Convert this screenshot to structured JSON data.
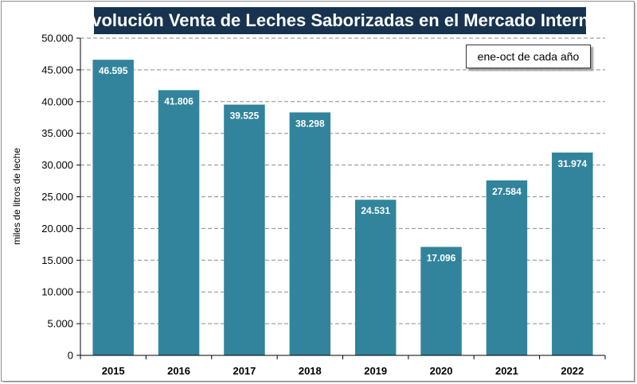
{
  "chart_data": {
    "type": "bar",
    "title": "Evolución Venta de Leches Saborizadas en el Mercado Interno",
    "annotation": "ene-oct de cada año",
    "xlabel": "",
    "ylabel": "miles de litros de leche",
    "categories": [
      "2015",
      "2016",
      "2017",
      "2018",
      "2019",
      "2020",
      "2021",
      "2022"
    ],
    "values": [
      46595,
      41806,
      39525,
      38298,
      24531,
      17096,
      27584,
      31974
    ],
    "value_labels": [
      "46.595",
      "41.806",
      "39.525",
      "38.298",
      "24.531",
      "17.096",
      "27.584",
      "31.974"
    ],
    "ylim": [
      0,
      50000
    ],
    "yticks": [
      0,
      5000,
      10000,
      15000,
      20000,
      25000,
      30000,
      35000,
      40000,
      45000,
      50000
    ],
    "ytick_labels": [
      "0",
      "5.000",
      "10.000",
      "15.000",
      "20.000",
      "25.000",
      "30.000",
      "35.000",
      "40.000",
      "45.000",
      "50.000"
    ],
    "grid": true,
    "bar_color": "#31849b",
    "title_bg": "#17334f"
  }
}
